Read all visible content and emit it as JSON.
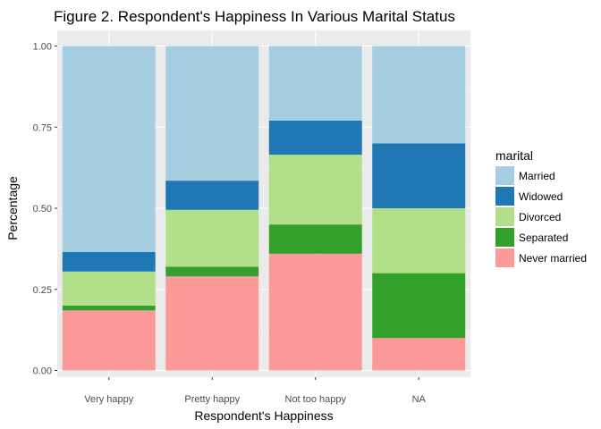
{
  "chart_data": {
    "type": "bar",
    "stacked": true,
    "title": "Figure 2. Respondent's Happiness In Various Marital Status",
    "xlabel": "Respondent's Happiness",
    "ylabel": "Percentage",
    "ylim": [
      0,
      1
    ],
    "y_ticks": [
      "0.00",
      "0.25",
      "0.50",
      "0.75",
      "1.00"
    ],
    "grid": true,
    "categories": [
      "Very happy",
      "Pretty happy",
      "Not too happy",
      "NA"
    ],
    "legend": {
      "title": "marital",
      "position": "right"
    },
    "series": [
      {
        "name": "Never married",
        "color": "#FB9A99",
        "values": [
          0.185,
          0.29,
          0.36,
          0.1
        ]
      },
      {
        "name": "Separated",
        "color": "#33A02C",
        "values": [
          0.015,
          0.03,
          0.09,
          0.2
        ]
      },
      {
        "name": "Divorced",
        "color": "#B2DF8A",
        "values": [
          0.105,
          0.175,
          0.215,
          0.2
        ]
      },
      {
        "name": "Widowed",
        "color": "#1F78B4",
        "values": [
          0.06,
          0.09,
          0.105,
          0.2
        ]
      },
      {
        "name": "Married",
        "color": "#A6CEE3",
        "values": [
          0.635,
          0.415,
          0.23,
          0.3
        ]
      }
    ],
    "legend_order": [
      "Married",
      "Widowed",
      "Divorced",
      "Separated",
      "Never married"
    ]
  }
}
